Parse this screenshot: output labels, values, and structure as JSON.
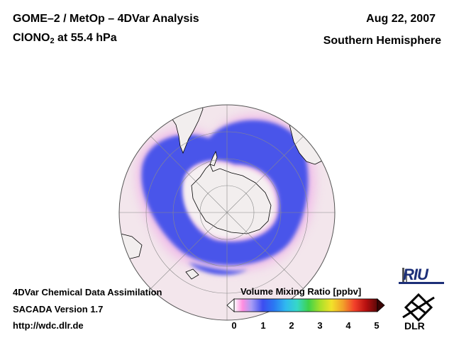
{
  "header": {
    "title_line1": "GOME–2 / MetOp – 4DVar Analysis",
    "species_prefix": "ClONO",
    "species_subscript": "2",
    "species_suffix": " at 55.4 hPa",
    "date": "Aug 22, 2007",
    "hemisphere": "Southern Hemisphere"
  },
  "footer": {
    "line1": "4DVar Chemical Data Assimilation",
    "line2": "SACADA Version 1.7",
    "line3": "http://wdc.dlr.de"
  },
  "colorbar": {
    "title": "Volume Mixing Ratio [ppbv]",
    "ticks": [
      "0",
      "1",
      "2",
      "3",
      "4",
      "5"
    ],
    "colors": [
      "#ffffff",
      "#ff88e0",
      "#ffffff",
      "#5b6cf2",
      "#1d3df2",
      "#29a8f2",
      "#36e0e0",
      "#3ed24a",
      "#c6e82a",
      "#f2e22a",
      "#f2a02a",
      "#f2302a",
      "#c01010",
      "#6a0808"
    ]
  },
  "logos": {
    "riu": "RIU",
    "dlr": "DLR"
  },
  "map": {
    "projection": "orthographic, south pole centered",
    "ocean_color": "#f3e6ec",
    "land_color": "#f2eeee",
    "band_color": "#4a55ea",
    "pink_halo_color": "#f0b8e8"
  }
}
